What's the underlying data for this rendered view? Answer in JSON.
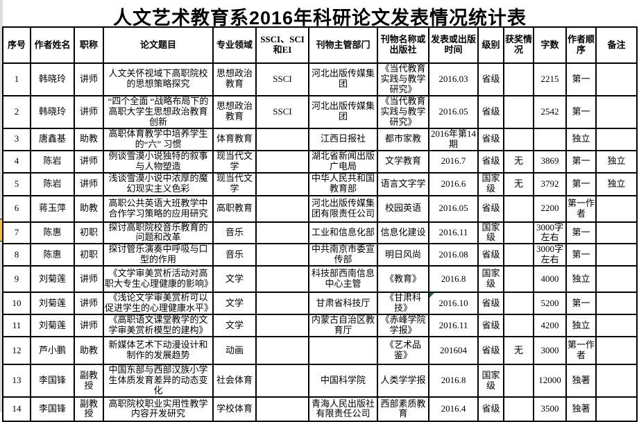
{
  "title": "人文艺术教育系2016年科研论文发表情况统计表",
  "table": {
    "headers": [
      "序号",
      "作者姓名",
      "职称",
      "论文题目",
      "专业领域",
      "SSCI、SCI 和EI",
      "刊物主管部门",
      "刊物名称或出版社",
      "发表或出版时间",
      "级别",
      "获奖情况",
      "字数",
      "作者顺序",
      "备注"
    ],
    "rows": [
      [
        "1",
        "韩晓玲",
        "讲师",
        "人文关怀视域下高职院校的思想策略探究",
        "思想政治教育",
        "SSCI",
        "河北出版传媒集团",
        "《当代教育实践与教学研究》",
        "2016.03",
        "省级",
        "",
        "2215",
        "第一",
        ""
      ],
      [
        "2",
        "韩晓玲",
        "讲师",
        "“四个全面 “战略布局下的高职大学生思想政治教育创新",
        "思想政治教育",
        "SSCI",
        "河北出版传媒集团",
        "《当代教育实践与教学研究》",
        "2016.05",
        "省级",
        "",
        "2542",
        "第一",
        ""
      ],
      [
        "3",
        "唐鑫基",
        "助教",
        "高职体育教学中培养学生的“六” 习惯",
        "体育教育",
        "",
        "江西日报社",
        "都市家教",
        "2016年第14期",
        "省级",
        "",
        "",
        "独立",
        ""
      ],
      [
        "4",
        "陈岩",
        "讲师",
        "例谈雪漠小说独特的叙事与人物塑造",
        "现当代文学",
        "",
        "湖北省新闻出版广电局",
        "文学教育",
        "2016.7",
        "省级",
        "无",
        "3869",
        "第一",
        "独立"
      ],
      [
        "5",
        "陈岩",
        "讲师",
        "浅谈雪漠小说中浓厚的魔幻现实主义色彩",
        "现当代文学",
        "",
        "中华人民共和国教育部",
        "语言文字学",
        "2016.6",
        "国家级",
        "无",
        "3792",
        "第一",
        "独立"
      ],
      [
        "6",
        "蒋玉萍",
        "助教",
        "高职公共英语大班教学中合作学习策略的应用研究",
        "高职教育",
        "",
        "河北出版传媒集团有限责任公司",
        "校园英语",
        "2016.05",
        "省级",
        "",
        "2200",
        "第一作者",
        ""
      ],
      [
        "7",
        "陈惠",
        "初职",
        "探讨高职院校音乐教育的问题和改革",
        "音乐",
        "",
        "工业和信息化部",
        "信息化建设",
        "2016.11",
        "国家级",
        "",
        "3000字左右",
        "第一",
        ""
      ],
      [
        "8",
        "陈惠",
        "初职",
        "探讨管乐演奏中呼吸与口型的作用",
        "音乐",
        "",
        "中共南京市委宣传部",
        "明日风尚",
        "2016.08",
        "省级",
        "",
        "3000字左右",
        "第一",
        ""
      ],
      [
        "9",
        "刘菊莲",
        "讲师",
        "《文学审美赏析活动对高职大专生心理健康的影响》",
        "文学",
        "",
        "科技部西南信息中心主管",
        "《教育》",
        "2016.8",
        "国家级",
        "",
        "4000",
        "独立",
        ""
      ],
      [
        "10",
        "刘菊莲",
        "讲师",
        "《浅论文学审美赏析可以促进学生的心理健康水平》",
        "文学",
        "",
        "甘肃省科技厅",
        "《甘肃科技》",
        "2016.10",
        "省级",
        "",
        "5200",
        "第一",
        ""
      ],
      [
        "11",
        "刘菊莲",
        "讲师",
        "《高职语文课堂教学的文学审美赏析模型的建构》",
        "文学",
        "",
        "内蒙古自治区教育厅",
        "《赤峰学院学报》",
        "2016.11",
        "省级",
        "",
        "4200",
        "独立",
        ""
      ],
      [
        "12",
        "芦小鹏",
        "助教",
        "新媒体艺术下动漫设计和制作的发展趋势",
        "动画",
        "",
        "",
        "《艺术品鉴》",
        "201604",
        "省级",
        "无",
        "3000",
        "第一作者",
        ""
      ],
      [
        "13",
        "李国锋",
        "副教授",
        "中国东部与西部汉族小学生体质发育差异的动态变化",
        "社会体育",
        "",
        "中国科学院",
        "人类学学报",
        "2016.8",
        "国家级",
        "",
        "12000",
        "独著",
        ""
      ],
      [
        "14",
        "李国锋",
        "副教授",
        "高职院校职业实用性教学内容开发研究",
        "学校体育",
        "",
        "青海人民出版社有限责任公司",
        "西部素质教育",
        "2016.4",
        "省级",
        "",
        "3500",
        "独著",
        ""
      ]
    ]
  },
  "annotations": {
    "flagged_cell": {
      "row": "10",
      "column": "发表或出版时间",
      "value": "2016.10",
      "flag_color": "#1e7145"
    },
    "gutter_highlight": {
      "row": "7",
      "color": "#edbf45"
    }
  },
  "colors": {
    "border": "#000000",
    "background": "#ffffff",
    "gutter": "#dcdcdc",
    "title_text": "#000000"
  }
}
